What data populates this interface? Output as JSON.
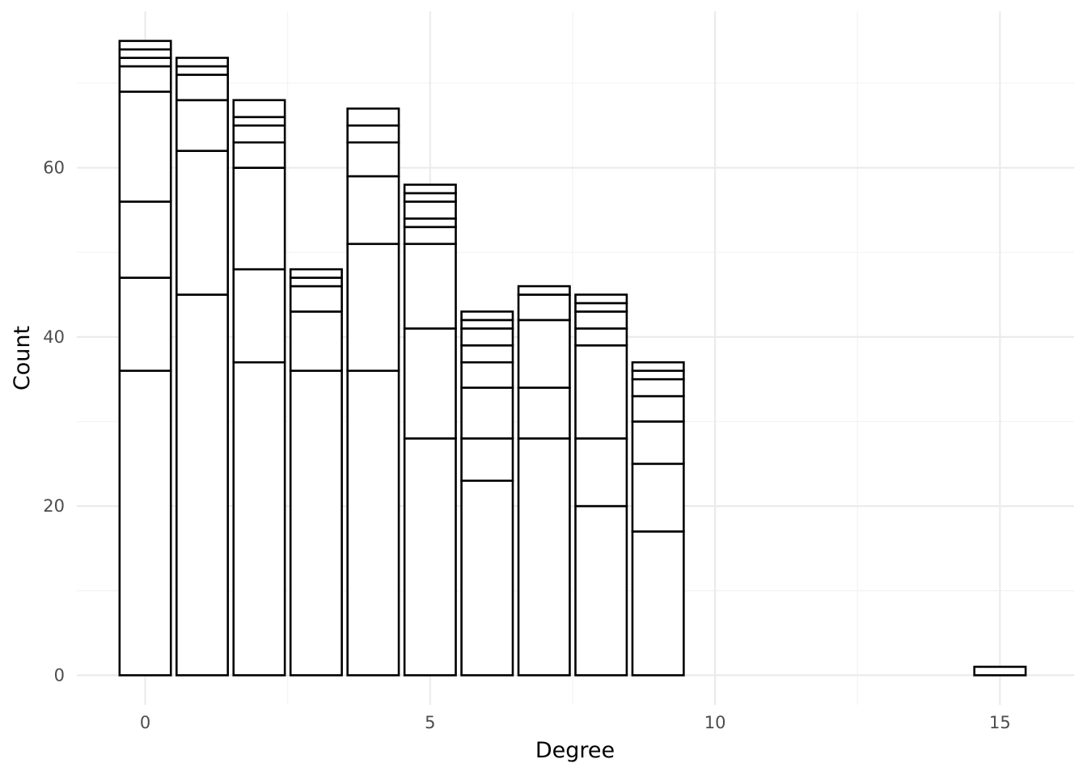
{
  "chart_data": {
    "type": "bar",
    "stacked": true,
    "xlabel": "Degree",
    "ylabel": "Count",
    "xlim": [
      -1.2,
      16.3
    ],
    "ylim": [
      -3.5,
      78.5
    ],
    "x_ticks": [
      0,
      5,
      10,
      15
    ],
    "y_ticks": [
      0,
      20,
      40,
      60
    ],
    "grid": true,
    "fill_color": "#ffffff",
    "outline_color": "#000000",
    "bars": [
      {
        "x": 0,
        "segments": [
          36,
          11,
          9,
          13,
          3,
          1,
          1,
          1
        ]
      },
      {
        "x": 1,
        "segments": [
          45,
          17,
          6,
          3,
          1,
          1
        ]
      },
      {
        "x": 2,
        "segments": [
          37,
          11,
          12,
          3,
          2,
          1,
          2
        ]
      },
      {
        "x": 3,
        "segments": [
          36,
          7,
          3,
          1,
          1
        ]
      },
      {
        "x": 4,
        "segments": [
          36,
          15,
          8,
          4,
          2,
          2
        ]
      },
      {
        "x": 5,
        "segments": [
          28,
          13,
          10,
          2,
          1,
          2,
          1,
          1
        ]
      },
      {
        "x": 6,
        "segments": [
          23,
          5,
          6,
          3,
          2,
          2,
          1,
          1
        ]
      },
      {
        "x": 7,
        "segments": [
          28,
          6,
          8,
          3,
          1
        ]
      },
      {
        "x": 8,
        "segments": [
          20,
          8,
          11,
          2,
          2,
          1,
          1
        ]
      },
      {
        "x": 9,
        "segments": [
          17,
          8,
          5,
          3,
          2,
          1,
          1
        ]
      },
      {
        "x": 15,
        "segments": [
          1
        ]
      }
    ]
  }
}
